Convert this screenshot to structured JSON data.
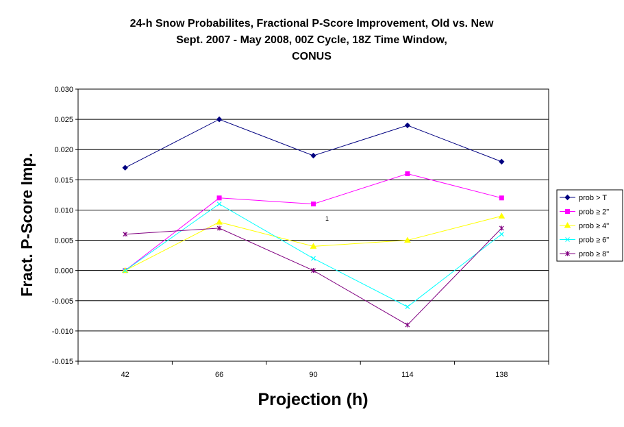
{
  "chart_data": {
    "type": "line",
    "title": [
      "24-h Snow Probabilites, Fractional P-Score Improvement, Old vs. New",
      "Sept. 2007 - May 2008, 00Z Cycle, 18Z Time Window,",
      "CONUS"
    ],
    "xlabel": "Projection (h)",
    "ylabel": "Fract. P-Score Imp.",
    "categories": [
      "42",
      "66",
      "90",
      "114",
      "138"
    ],
    "ylim": [
      -0.015,
      0.03
    ],
    "yticks": [
      "0.030",
      "0.025",
      "0.020",
      "0.015",
      "0.010",
      "0.005",
      "0.000",
      "-0.005",
      "-0.010",
      "-0.015"
    ],
    "grid": true,
    "legend_position": "right",
    "annotation": "1",
    "series": [
      {
        "name": "prob > T",
        "color": "#000080",
        "marker": "diamond",
        "values": [
          0.017,
          0.025,
          0.019,
          0.024,
          0.018
        ]
      },
      {
        "name": "prob ≥ 2\"",
        "color": "#ff00ff",
        "marker": "square",
        "values": [
          0.0,
          0.012,
          0.011,
          0.016,
          0.012
        ]
      },
      {
        "name": "prob ≥ 4\"",
        "color": "#ffff00",
        "marker": "triangle",
        "values": [
          0.0,
          0.008,
          0.004,
          0.005,
          0.009
        ]
      },
      {
        "name": "prob ≥ 6\"",
        "color": "#00ffff",
        "marker": "x",
        "values": [
          0.0,
          0.011,
          0.002,
          -0.006,
          0.006
        ]
      },
      {
        "name": "prob ≥ 8\"",
        "color": "#800080",
        "marker": "star",
        "values": [
          0.006,
          0.007,
          0.0,
          -0.009,
          0.007
        ]
      }
    ]
  }
}
